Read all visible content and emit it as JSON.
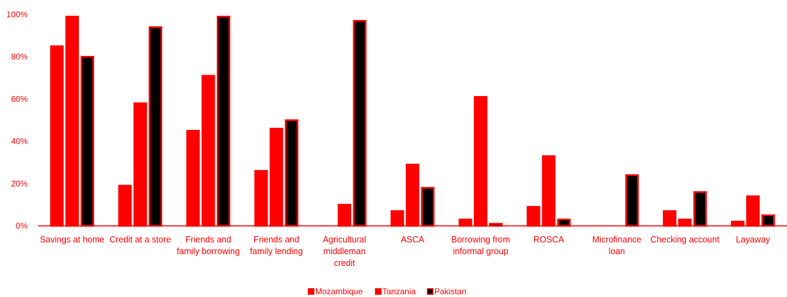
{
  "chart_data": {
    "type": "bar",
    "categories": [
      [
        "Savings at home"
      ],
      [
        "Credit at a store"
      ],
      [
        "Friends and",
        "family borrowing"
      ],
      [
        "Friends and",
        "family lending"
      ],
      [
        "Agricultural",
        "middleman",
        "credit"
      ],
      [
        "ASCA"
      ],
      [
        "Borrowing from",
        "informal group"
      ],
      [
        "ROSCA"
      ],
      [
        "Microfinance",
        "loan"
      ],
      [
        "Checking account"
      ],
      [
        "Layaway"
      ]
    ],
    "series": [
      {
        "name": "Mozambique",
        "color": "#ff0000",
        "border": "#ff0000",
        "values": [
          85,
          19,
          45,
          26,
          null,
          7,
          3,
          9,
          null,
          7,
          2
        ]
      },
      {
        "name": "Tanzania",
        "color": "#ff0000",
        "border": "#ff0000",
        "values": [
          99,
          58,
          71,
          46,
          10,
          29,
          61,
          33,
          null,
          3,
          14
        ]
      },
      {
        "name": "Pakistan",
        "color": "#000000",
        "border": "#ff0000",
        "values": [
          80,
          94,
          99,
          50,
          97,
          18,
          1,
          3,
          24,
          16,
          5
        ]
      }
    ],
    "ylim": [
      0,
      100
    ],
    "yticks": [
      "0%",
      "20%",
      "40%",
      "60%",
      "80%",
      "100%"
    ],
    "grid": false,
    "legend_position": "bottom",
    "text_color": "#ff0000"
  }
}
